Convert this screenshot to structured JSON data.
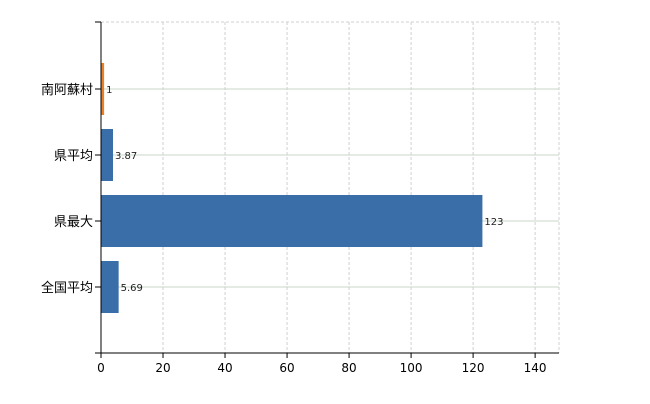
{
  "chart_data": {
    "type": "bar",
    "orientation": "horizontal",
    "categories": [
      "南阿蘇村",
      "県平均",
      "県最大",
      "全国平均"
    ],
    "values": [
      1,
      3.87,
      123,
      5.69
    ],
    "data_labels": [
      "1",
      "3.87",
      "123",
      "5.69"
    ],
    "bar_colors": [
      "#e8802a",
      "#3a6ea8",
      "#3a6ea8",
      "#3a6ea8"
    ],
    "title": "",
    "xlabel": "",
    "ylabel": "",
    "xlim": [
      0,
      147.7
    ],
    "xticks": [
      0,
      20,
      40,
      60,
      80,
      100,
      120,
      140
    ],
    "grid": true,
    "grid_color": "#d0d0d0"
  }
}
